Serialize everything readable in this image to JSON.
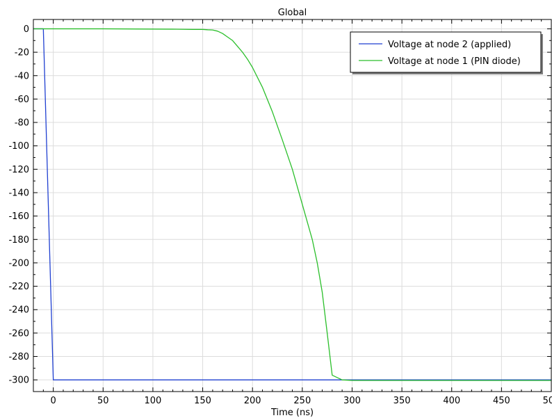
{
  "chart_data": {
    "type": "line",
    "title": "Global",
    "xlabel": "Time (ns)",
    "ylabel": "",
    "xlim": [
      -20,
      500
    ],
    "ylim": [
      -310,
      8
    ],
    "xticks": [
      0,
      50,
      100,
      150,
      200,
      250,
      300,
      350,
      400,
      450,
      500
    ],
    "yticks": [
      0,
      -20,
      -40,
      -60,
      -80,
      -100,
      -120,
      -140,
      -160,
      -180,
      -200,
      -220,
      -240,
      -260,
      -280,
      -300
    ],
    "grid": true,
    "legend_position": "top-right",
    "series": [
      {
        "name": "Voltage at node 2 (applied)",
        "color": "#1f3fd1",
        "x": [
          -20,
          -10,
          0,
          500
        ],
        "y": [
          0,
          0,
          -300,
          -300
        ]
      },
      {
        "name": "Voltage at node 1 (PIN diode)",
        "color": "#2bbf2b",
        "x": [
          -20,
          0,
          50,
          100,
          120,
          140,
          150,
          155,
          160,
          165,
          170,
          175,
          180,
          185,
          190,
          195,
          200,
          210,
          220,
          230,
          240,
          250,
          260,
          265,
          270,
          275,
          280,
          285,
          290,
          300,
          350,
          400,
          450,
          500
        ],
        "y": [
          0,
          0,
          0,
          -0.2,
          -0.3,
          -0.5,
          -0.5,
          -0.8,
          -1,
          -2,
          -4,
          -7,
          -10,
          -15,
          -20,
          -26,
          -33,
          -50,
          -71,
          -95,
          -120,
          -150,
          -180,
          -200,
          -225,
          -260,
          -296,
          -298,
          -300,
          -300.5,
          -300.5,
          -300.5,
          -300.5,
          -300.5
        ]
      }
    ]
  }
}
